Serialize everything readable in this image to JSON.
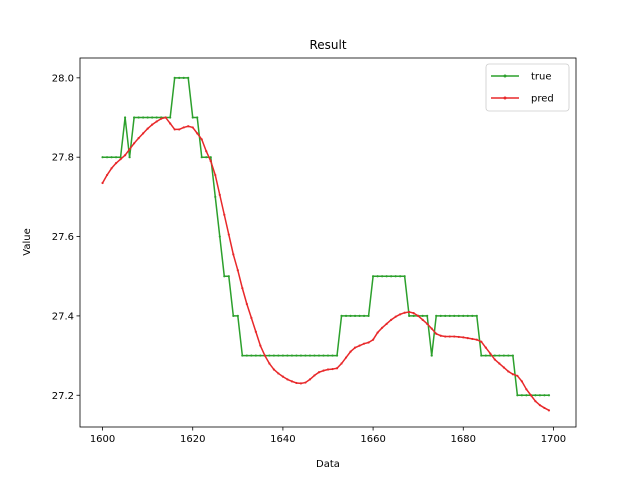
{
  "chart_data": {
    "type": "line",
    "title": "Result",
    "xlabel": "Data",
    "ylabel": "Value",
    "xlim": [
      1595,
      1705
    ],
    "ylim": [
      27.12,
      28.05
    ],
    "xticks": [
      1600,
      1620,
      1640,
      1660,
      1680,
      1700
    ],
    "yticks": [
      27.2,
      27.4,
      27.6,
      27.8,
      28.0
    ],
    "xtick_labels": [
      "1600",
      "1620",
      "1640",
      "1660",
      "1680",
      "1700"
    ],
    "ytick_labels": [
      "27.2",
      "27.4",
      "27.6",
      "27.8",
      "28.0"
    ],
    "grid": false,
    "legend_position": "top-right",
    "series": [
      {
        "name": "true",
        "color": "#2ca02c",
        "x": [
          1600,
          1601,
          1602,
          1603,
          1604,
          1605,
          1606,
          1607,
          1608,
          1609,
          1610,
          1611,
          1612,
          1613,
          1614,
          1615,
          1616,
          1617,
          1618,
          1619,
          1620,
          1621,
          1622,
          1623,
          1624,
          1625,
          1626,
          1627,
          1628,
          1629,
          1630,
          1631,
          1632,
          1633,
          1634,
          1635,
          1636,
          1637,
          1638,
          1639,
          1640,
          1641,
          1642,
          1643,
          1644,
          1645,
          1646,
          1647,
          1648,
          1649,
          1650,
          1651,
          1652,
          1653,
          1654,
          1655,
          1656,
          1657,
          1658,
          1659,
          1660,
          1661,
          1662,
          1663,
          1664,
          1665,
          1666,
          1667,
          1668,
          1669,
          1670,
          1671,
          1672,
          1673,
          1674,
          1675,
          1676,
          1677,
          1678,
          1679,
          1680,
          1681,
          1682,
          1683,
          1684,
          1685,
          1686,
          1687,
          1688,
          1689,
          1690,
          1691,
          1692,
          1693,
          1694,
          1695,
          1696,
          1697,
          1698,
          1699
        ],
        "y": [
          27.8,
          27.8,
          27.8,
          27.8,
          27.8,
          27.9,
          27.8,
          27.9,
          27.9,
          27.9,
          27.9,
          27.9,
          27.9,
          27.9,
          27.9,
          27.9,
          28.0,
          28.0,
          28.0,
          28.0,
          27.9,
          27.9,
          27.8,
          27.8,
          27.8,
          27.7,
          27.6,
          27.5,
          27.5,
          27.4,
          27.4,
          27.3,
          27.3,
          27.3,
          27.3,
          27.3,
          27.3,
          27.3,
          27.3,
          27.3,
          27.3,
          27.3,
          27.3,
          27.3,
          27.3,
          27.3,
          27.3,
          27.3,
          27.3,
          27.3,
          27.3,
          27.3,
          27.3,
          27.4,
          27.4,
          27.4,
          27.4,
          27.4,
          27.4,
          27.4,
          27.5,
          27.5,
          27.5,
          27.5,
          27.5,
          27.5,
          27.5,
          27.5,
          27.4,
          27.4,
          27.4,
          27.4,
          27.4,
          27.3,
          27.4,
          27.4,
          27.4,
          27.4,
          27.4,
          27.4,
          27.4,
          27.4,
          27.4,
          27.4,
          27.3,
          27.3,
          27.3,
          27.3,
          27.3,
          27.3,
          27.3,
          27.3,
          27.2,
          27.2,
          27.2,
          27.2,
          27.2,
          27.2,
          27.2,
          27.2
        ]
      },
      {
        "name": "pred",
        "color": "#e8282a",
        "x": [
          1600,
          1601,
          1602,
          1603,
          1604,
          1605,
          1606,
          1607,
          1608,
          1609,
          1610,
          1611,
          1612,
          1613,
          1614,
          1615,
          1616,
          1617,
          1618,
          1619,
          1620,
          1621,
          1622,
          1623,
          1624,
          1625,
          1626,
          1627,
          1628,
          1629,
          1630,
          1631,
          1632,
          1633,
          1634,
          1635,
          1636,
          1637,
          1638,
          1639,
          1640,
          1641,
          1642,
          1643,
          1644,
          1645,
          1646,
          1647,
          1648,
          1649,
          1650,
          1651,
          1652,
          1653,
          1654,
          1655,
          1656,
          1657,
          1658,
          1659,
          1660,
          1661,
          1662,
          1663,
          1664,
          1665,
          1666,
          1667,
          1668,
          1669,
          1670,
          1671,
          1672,
          1673,
          1674,
          1675,
          1676,
          1677,
          1678,
          1679,
          1680,
          1681,
          1682,
          1683,
          1684,
          1685,
          1686,
          1687,
          1688,
          1689,
          1690,
          1691,
          1692,
          1693,
          1694,
          1695,
          1696,
          1697,
          1698,
          1699
        ],
        "y": [
          27.735,
          27.755,
          27.772,
          27.785,
          27.795,
          27.805,
          27.82,
          27.835,
          27.848,
          27.86,
          27.872,
          27.882,
          27.89,
          27.897,
          27.9,
          27.885,
          27.87,
          27.87,
          27.875,
          27.878,
          27.875,
          27.86,
          27.845,
          27.815,
          27.79,
          27.755,
          27.705,
          27.655,
          27.605,
          27.555,
          27.515,
          27.47,
          27.43,
          27.395,
          27.36,
          27.325,
          27.3,
          27.28,
          27.265,
          27.255,
          27.247,
          27.24,
          27.235,
          27.231,
          27.23,
          27.232,
          27.24,
          27.25,
          27.258,
          27.262,
          27.265,
          27.266,
          27.268,
          27.28,
          27.295,
          27.31,
          27.32,
          27.325,
          27.33,
          27.333,
          27.34,
          27.358,
          27.37,
          27.38,
          27.39,
          27.398,
          27.404,
          27.408,
          27.41,
          27.407,
          27.4,
          27.39,
          27.38,
          27.368,
          27.355,
          27.35,
          27.348,
          27.348,
          27.348,
          27.347,
          27.346,
          27.344,
          27.342,
          27.34,
          27.335,
          27.32,
          27.305,
          27.29,
          27.28,
          27.27,
          27.26,
          27.253,
          27.249,
          27.235,
          27.215,
          27.2,
          27.185,
          27.175,
          27.168,
          27.162
        ]
      }
    ]
  }
}
